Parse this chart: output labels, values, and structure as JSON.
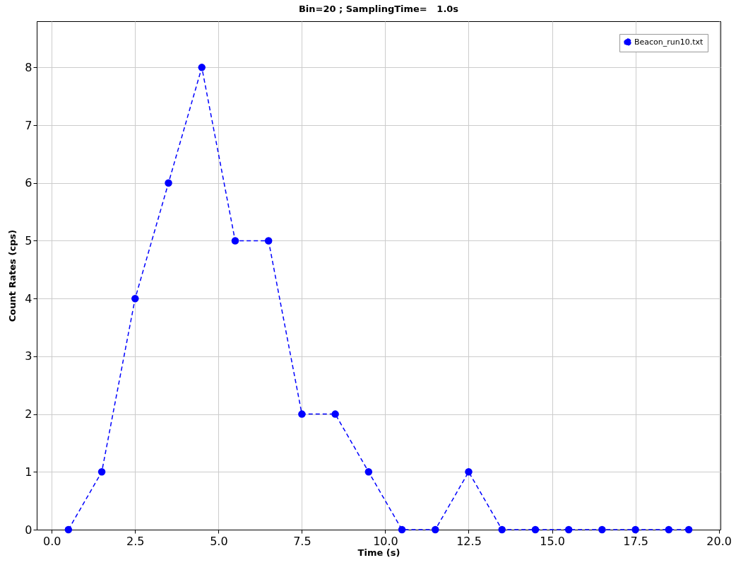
{
  "chart_data": {
    "type": "line",
    "title": "Bin=20 ; SamplingTime=   1.0s",
    "xlabel": "Time (s)",
    "ylabel": "Count Rates (cps)",
    "x": [
      0.5,
      1.5,
      2.5,
      3.5,
      4.5,
      5.5,
      6.5,
      7.5,
      8.5,
      9.5,
      10.5,
      11.5,
      12.5,
      13.5,
      14.5,
      15.5,
      16.5,
      17.5,
      18.5,
      19.1
    ],
    "series": [
      {
        "name": "Beacon_run10.txt",
        "color": "#0000ff",
        "values": [
          0,
          1,
          4,
          6,
          8,
          5,
          5,
          2,
          2,
          1,
          0,
          0,
          1,
          0,
          0,
          0,
          0,
          0,
          0,
          0
        ]
      }
    ],
    "xlim": [
      -0.45,
      20.05
    ],
    "xticks": [
      {
        "value": 0,
        "label": "0.0"
      },
      {
        "value": 2.5,
        "label": "2.5"
      },
      {
        "value": 5,
        "label": "5.0"
      },
      {
        "value": 7.5,
        "label": "7.5"
      },
      {
        "value": 10,
        "label": "10.0"
      },
      {
        "value": 12.5,
        "label": "12.5"
      },
      {
        "value": 15,
        "label": "15.0"
      },
      {
        "value": 17.5,
        "label": "17.5"
      },
      {
        "value": 20,
        "label": "20.0"
      }
    ],
    "ylim": [
      0,
      8.8
    ],
    "yticks": [
      0,
      1,
      2,
      3,
      4,
      5,
      6,
      7,
      8
    ],
    "grid": true,
    "legend": "top right",
    "marker": "circle",
    "line_style": "dashed"
  }
}
